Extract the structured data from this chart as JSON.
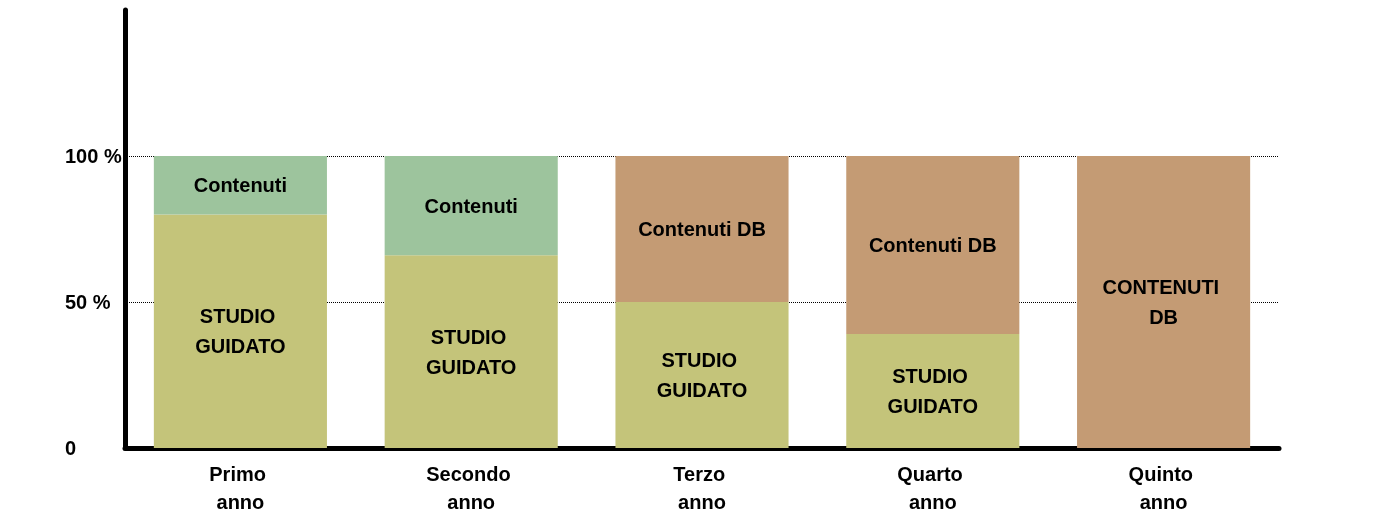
{
  "chart_data": {
    "type": "bar",
    "stacked": true,
    "categories": [
      "Primo anno",
      "Secondo anno",
      "Terzo anno",
      "Quarto anno",
      "Quinto anno"
    ],
    "series": [
      {
        "name": null,
        "color": "#c4c47a",
        "values": [
          80,
          66,
          50,
          39,
          null
        ],
        "value_labels": [
          "STUDIO GUIDATO",
          "STUDIO GUIDATO",
          "STUDIO GUIDATO",
          "STUDIO GUIDATO",
          null
        ]
      },
      {
        "name": null,
        "color": "#9dc49d",
        "values": [
          20,
          34,
          null,
          null,
          null
        ],
        "value_labels": [
          "Contenuti",
          "Contenuti",
          null,
          null,
          null
        ]
      },
      {
        "name": null,
        "color": "#c49b74",
        "values": [
          null,
          null,
          50,
          61,
          100
        ],
        "value_labels": [
          null,
          null,
          "Contenuti DB",
          "Contenuti DB",
          "CONTENUTI DB"
        ]
      }
    ],
    "ylim": [
      0,
      150
    ],
    "yticks": [
      {
        "value": 0,
        "label": "0"
      },
      {
        "value": 50,
        "label": "50 %"
      },
      {
        "value": 100,
        "label": "100 %"
      }
    ],
    "grid": "y"
  }
}
